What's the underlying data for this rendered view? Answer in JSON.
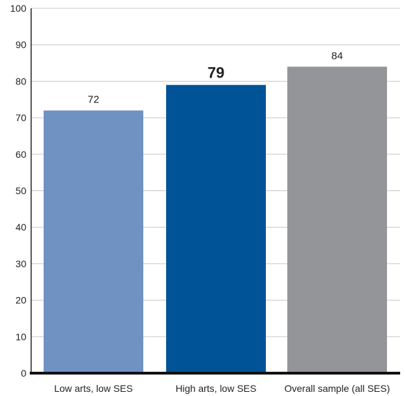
{
  "chart_data": {
    "type": "bar",
    "title": "",
    "xlabel": "",
    "ylabel": "",
    "categories": [
      "Low arts, low SES",
      "High arts, low SES",
      "Overall sample (all SES)"
    ],
    "values": [
      72,
      79,
      84
    ],
    "value_labels": [
      "72",
      "79",
      "84"
    ],
    "emphasized_index": 1,
    "colors": [
      "#7092c2",
      "#005396",
      "#939598"
    ],
    "ylim": [
      0,
      100
    ],
    "yticks": [
      0,
      10,
      20,
      30,
      40,
      50,
      60,
      70,
      80,
      90,
      100
    ],
    "ytick_labels": [
      "0",
      "10",
      "20",
      "30",
      "40",
      "50",
      "60",
      "70",
      "80",
      "90",
      "100"
    ],
    "grid": true,
    "legend": "none"
  }
}
